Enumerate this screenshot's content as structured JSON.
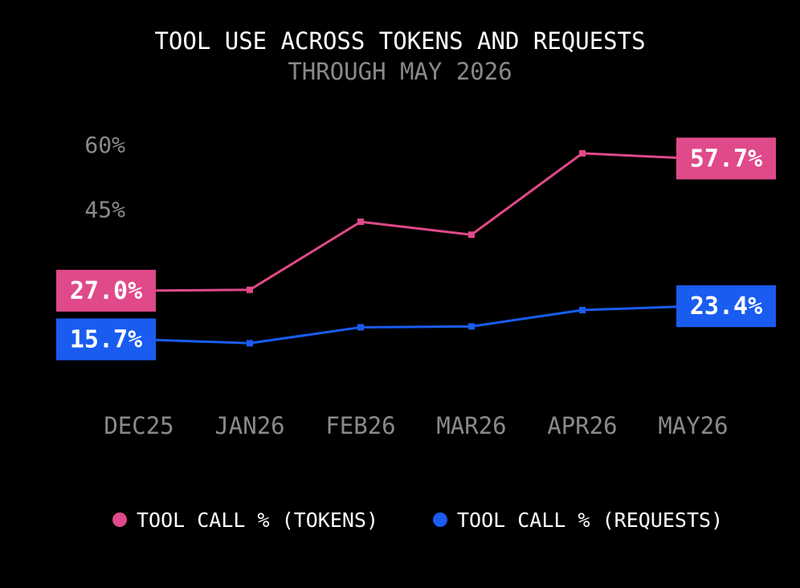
{
  "chart_data": {
    "type": "line",
    "title": "TOOL USE ACROSS TOKENS AND REQUESTS",
    "subtitle": "THROUGH MAY 2026",
    "categories": [
      "DEC25",
      "JAN26",
      "FEB26",
      "MAR26",
      "APR26",
      "MAY26"
    ],
    "y_ticks": [
      {
        "value": 45,
        "label": "45%"
      },
      {
        "value": 60,
        "label": "60%"
      }
    ],
    "ylim": [
      0,
      60
    ],
    "grid": false,
    "legend_position": "bottom",
    "series": [
      {
        "name": "TOOL CALL % (TOKENS)",
        "color": "#e0498a",
        "values": [
          27.0,
          27.2,
          43.0,
          40.0,
          58.9,
          57.7
        ],
        "start_label": "27.0%",
        "end_label": "57.7%"
      },
      {
        "name": "TOOL CALL % (REQUESTS)",
        "color": "#1a5cf0",
        "values": [
          15.7,
          14.8,
          18.5,
          18.7,
          22.5,
          23.4
        ],
        "start_label": "15.7%",
        "end_label": "23.4%"
      }
    ]
  }
}
